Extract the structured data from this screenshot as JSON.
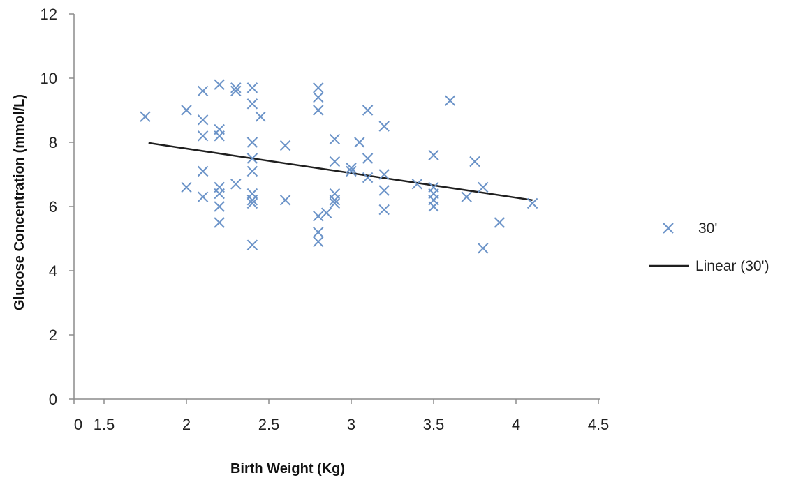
{
  "colors": {
    "marker": "#6b93c8",
    "trendline": "#1f1f1f",
    "axis": "#8c8c8c"
  },
  "chart_data": {
    "type": "scatter",
    "title": "",
    "xlabel": "Birth Weight (Kg)",
    "ylabel": "Glucose  Concentration (mmol/L)",
    "xlim": [
      1.0,
      4.5
    ],
    "ylim": [
      0,
      12
    ],
    "x_ticks": [
      "0",
      "1.5",
      "2",
      "2.5",
      "3",
      "3.5",
      "4",
      "4.5"
    ],
    "y_ticks": [
      "0",
      "2",
      "4",
      "6",
      "8",
      "10",
      "12"
    ],
    "grid": false,
    "legend_position": "right",
    "series": [
      {
        "name": "30'",
        "marker": "x",
        "points": [
          [
            1.75,
            8.8
          ],
          [
            2.0,
            9.0
          ],
          [
            2.0,
            6.6
          ],
          [
            2.1,
            9.6
          ],
          [
            2.1,
            8.7
          ],
          [
            2.1,
            8.2
          ],
          [
            2.1,
            7.1
          ],
          [
            2.1,
            7.1
          ],
          [
            2.1,
            6.3
          ],
          [
            2.2,
            9.8
          ],
          [
            2.2,
            8.4
          ],
          [
            2.2,
            8.2
          ],
          [
            2.2,
            6.6
          ],
          [
            2.2,
            6.4
          ],
          [
            2.2,
            6.0
          ],
          [
            2.2,
            5.5
          ],
          [
            2.3,
            9.7
          ],
          [
            2.3,
            9.6
          ],
          [
            2.3,
            6.7
          ],
          [
            2.4,
            9.7
          ],
          [
            2.4,
            9.2
          ],
          [
            2.4,
            8.0
          ],
          [
            2.4,
            7.5
          ],
          [
            2.4,
            7.1
          ],
          [
            2.4,
            6.4
          ],
          [
            2.4,
            6.2
          ],
          [
            2.4,
            6.1
          ],
          [
            2.4,
            4.8
          ],
          [
            2.45,
            8.8
          ],
          [
            2.6,
            7.9
          ],
          [
            2.6,
            6.2
          ],
          [
            2.8,
            9.7
          ],
          [
            2.8,
            9.4
          ],
          [
            2.8,
            9.0
          ],
          [
            2.8,
            5.7
          ],
          [
            2.8,
            5.2
          ],
          [
            2.8,
            4.9
          ],
          [
            2.85,
            5.8
          ],
          [
            2.9,
            8.1
          ],
          [
            2.9,
            7.4
          ],
          [
            2.9,
            6.4
          ],
          [
            2.9,
            6.2
          ],
          [
            2.9,
            6.1
          ],
          [
            3.0,
            7.2
          ],
          [
            3.0,
            7.1
          ],
          [
            3.05,
            8.0
          ],
          [
            3.1,
            9.0
          ],
          [
            3.1,
            7.5
          ],
          [
            3.1,
            6.9
          ],
          [
            3.2,
            8.5
          ],
          [
            3.2,
            7.0
          ],
          [
            3.2,
            6.5
          ],
          [
            3.2,
            5.9
          ],
          [
            3.4,
            6.7
          ],
          [
            3.5,
            7.6
          ],
          [
            3.5,
            6.6
          ],
          [
            3.5,
            6.4
          ],
          [
            3.5,
            6.2
          ],
          [
            3.5,
            6.0
          ],
          [
            3.6,
            9.3
          ],
          [
            3.7,
            6.3
          ],
          [
            3.75,
            7.4
          ],
          [
            3.8,
            6.6
          ],
          [
            3.8,
            4.7
          ],
          [
            3.9,
            5.5
          ],
          [
            4.1,
            6.1
          ]
        ]
      },
      {
        "name": "Linear (30')",
        "type": "line",
        "points": [
          [
            1.77,
            7.98
          ],
          [
            4.1,
            6.2
          ]
        ]
      }
    ]
  }
}
